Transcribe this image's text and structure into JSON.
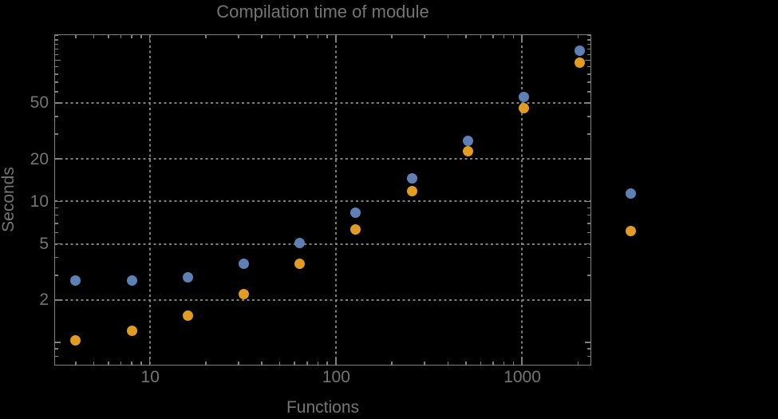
{
  "chart_data": {
    "type": "scatter",
    "title": "Compilation time of module",
    "xlabel": "Functions",
    "ylabel": "Seconds",
    "xscale": "log",
    "yscale": "log",
    "xlim": [
      3.08,
      2325
    ],
    "ylim": [
      0.7,
      152
    ],
    "grid": "dotted, at labeled major ticks only",
    "x": [
      4,
      8,
      16,
      32,
      64,
      128,
      256,
      512,
      1024,
      2048
    ],
    "series": [
      {
        "name": "blue",
        "color": "#5e81b5",
        "values": [
          2.75,
          2.76,
          2.9,
          3.6,
          5.1,
          8.3,
          14.5,
          27,
          55,
          117
        ]
      },
      {
        "name": "orange",
        "color": "#e19c24",
        "values": [
          1.03,
          1.21,
          1.54,
          2.2,
          3.6,
          6.3,
          11.9,
          22.7,
          46,
          96
        ]
      }
    ],
    "x_ticks": {
      "major": [
        10,
        100,
        1000
      ],
      "major_labels": [
        "10",
        "100",
        "1000"
      ],
      "minor": [
        4,
        5,
        6,
        7,
        8,
        9,
        20,
        30,
        40,
        50,
        60,
        70,
        80,
        90,
        200,
        300,
        400,
        500,
        600,
        700,
        800,
        900,
        2000
      ]
    },
    "y_ticks": {
      "major": [
        2,
        5,
        10,
        20,
        50
      ],
      "major_labels": [
        "2",
        "5",
        "10",
        "20",
        "50"
      ],
      "medium": [
        1,
        100
      ],
      "minor": [
        0.8,
        0.9,
        3,
        4,
        6,
        7,
        8,
        9,
        30,
        40,
        60,
        70,
        80,
        90,
        110,
        120,
        130,
        140,
        150
      ]
    },
    "legend": {
      "labels_visible": false,
      "markers": [
        {
          "color": "#5e81b5"
        },
        {
          "color": "#e19c24"
        }
      ]
    },
    "colors": {
      "background": "#000000",
      "frame": "#7f7f7f",
      "gridline": "#7e7e7e",
      "text": "#757575"
    }
  }
}
